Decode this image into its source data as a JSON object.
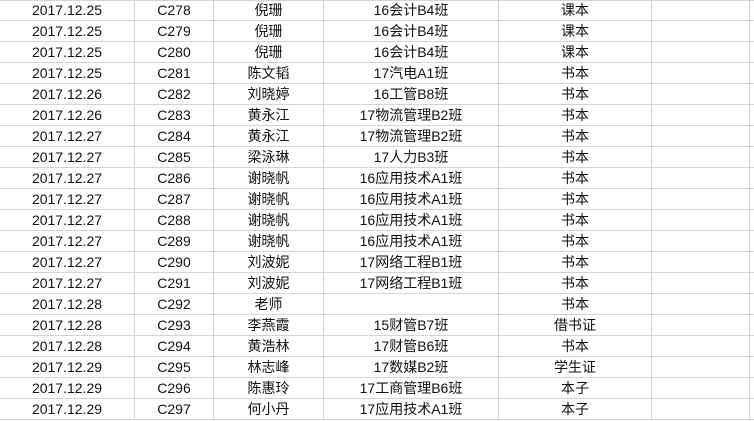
{
  "grid_color": "#d4d4d4",
  "rows": [
    [
      "2017.12.25",
      "C278",
      "倪珊",
      "16会计B4班",
      "课本"
    ],
    [
      "2017.12.25",
      "C279",
      "倪珊",
      "16会计B4班",
      "课本"
    ],
    [
      "2017.12.25",
      "C280",
      "倪珊",
      "16会计B4班",
      "课本"
    ],
    [
      "2017.12.25",
      "C281",
      "陈文韬",
      "17汽电A1班",
      "书本"
    ],
    [
      "2017.12.26",
      "C282",
      "刘晓婷",
      "16工管B8班",
      "书本"
    ],
    [
      "2017.12.26",
      "C283",
      "黄永江",
      "17物流管理B2班",
      "书本"
    ],
    [
      "2017.12.27",
      "C284",
      "黄永江",
      "17物流管理B2班",
      "书本"
    ],
    [
      "2017.12.27",
      "C285",
      "梁泳琳",
      "17人力B3班",
      "书本"
    ],
    [
      "2017.12.27",
      "C286",
      "谢晓帆",
      "16应用技术A1班",
      "书本"
    ],
    [
      "2017.12.27",
      "C287",
      "谢晓帆",
      "16应用技术A1班",
      "书本"
    ],
    [
      "2017.12.27",
      "C288",
      "谢晓帆",
      "16应用技术A1班",
      "书本"
    ],
    [
      "2017.12.27",
      "C289",
      "谢晓帆",
      "16应用技术A1班",
      "书本"
    ],
    [
      "2017.12.27",
      "C290",
      "刘波妮",
      "17网络工程B1班",
      "书本"
    ],
    [
      "2017.12.27",
      "C291",
      "刘波妮",
      "17网络工程B1班",
      "书本"
    ],
    [
      "2017.12.28",
      "C292",
      "老师",
      "",
      "书本"
    ],
    [
      "2017.12.28",
      "C293",
      "李燕霞",
      "15财管B7班",
      "借书证"
    ],
    [
      "2017.12.28",
      "C294",
      "黄浩林",
      "17财管B6班",
      "书本"
    ],
    [
      "2017.12.29",
      "C295",
      "林志峰",
      "17数媒B2班",
      "学生证"
    ],
    [
      "2017.12.29",
      "C296",
      "陈惠玲",
      "17工商管理B6班",
      "本子"
    ],
    [
      "2017.12.29",
      "C297",
      "何小丹",
      "17应用技术A1班",
      "本子"
    ]
  ]
}
